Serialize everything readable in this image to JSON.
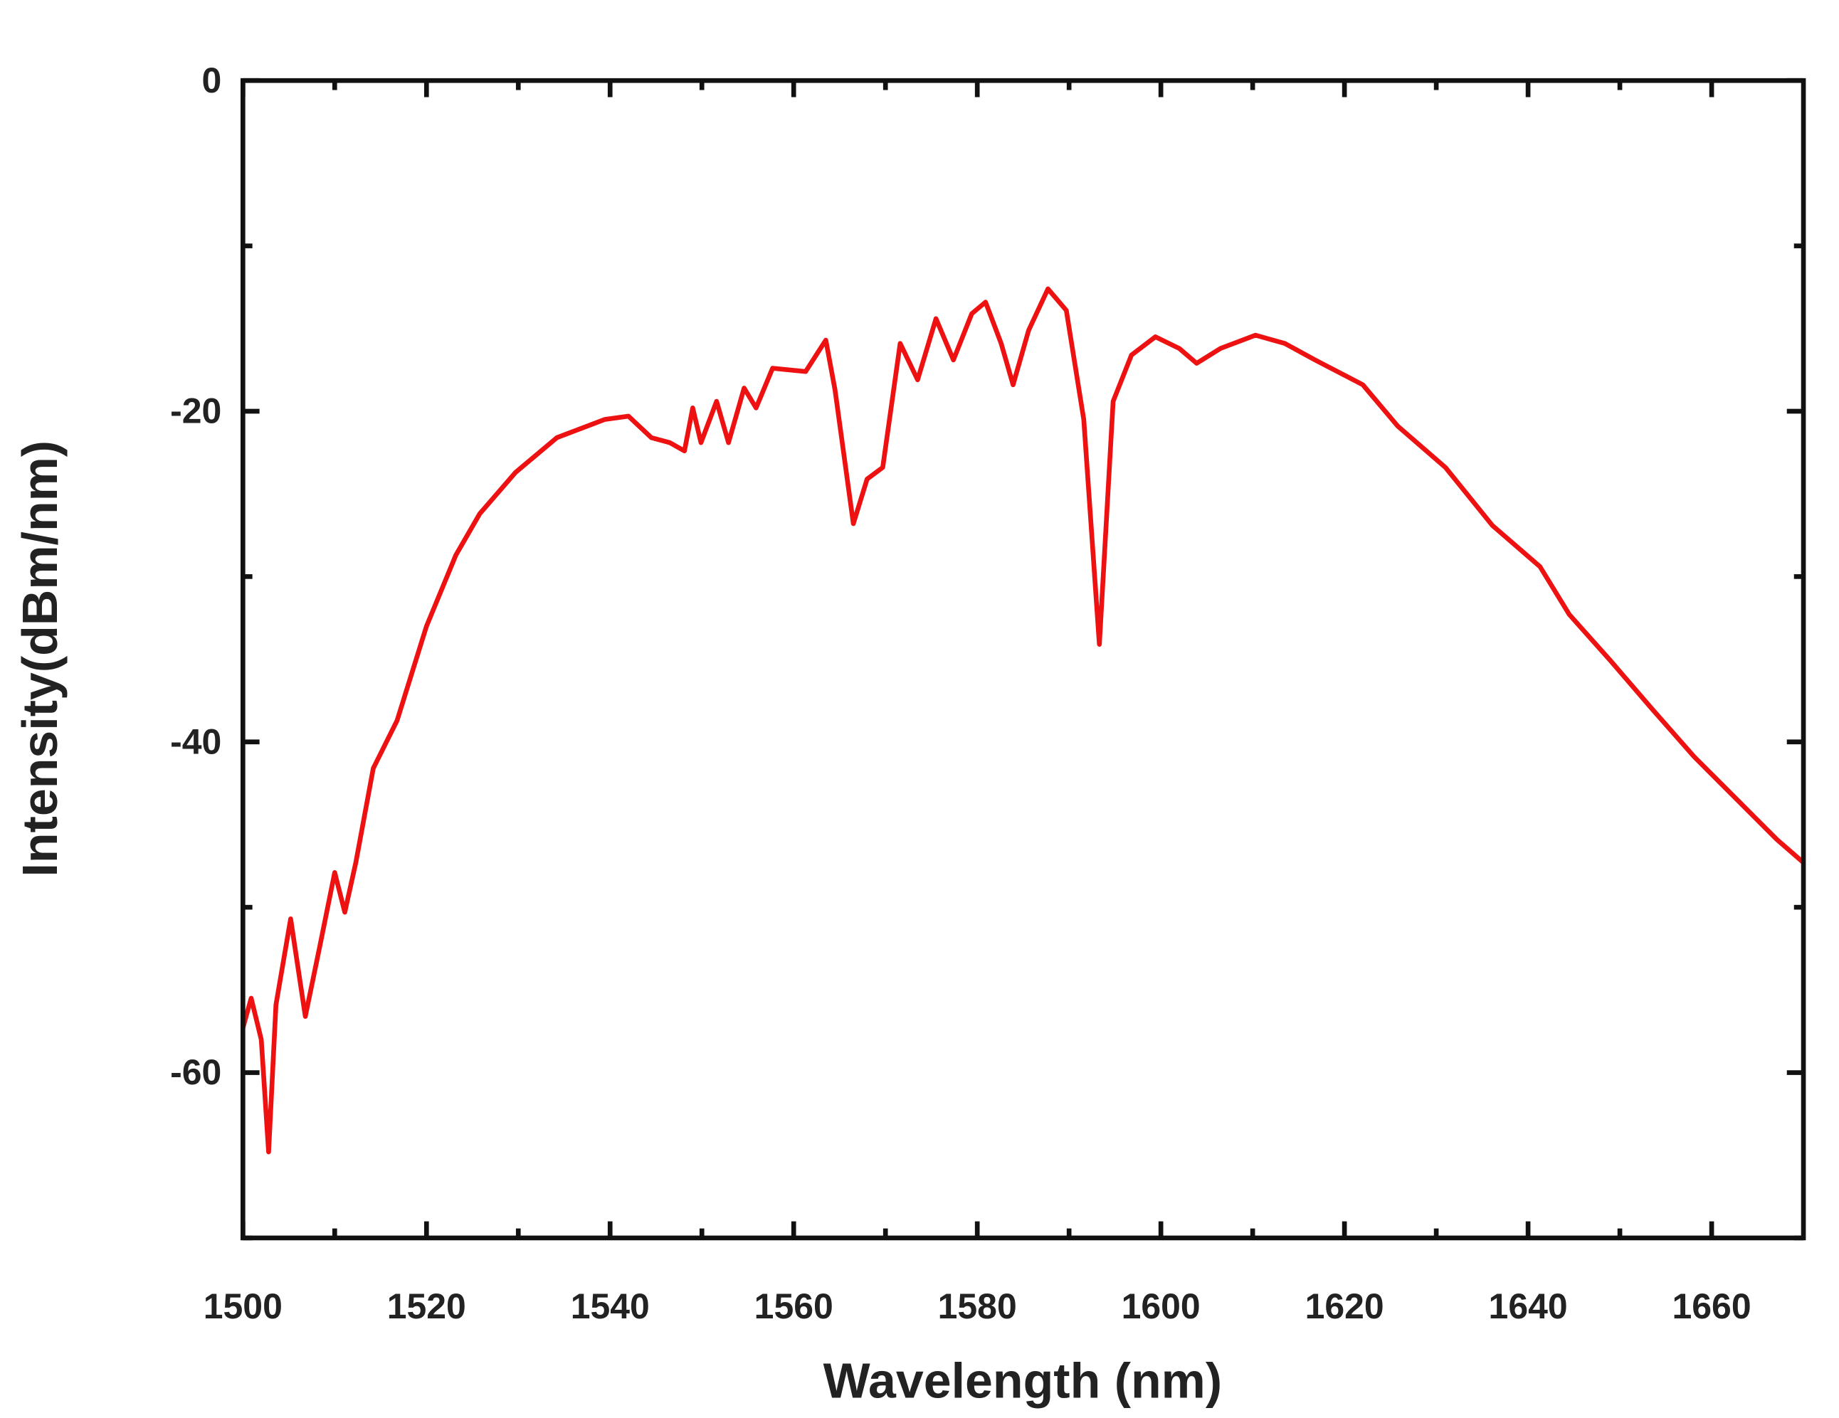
{
  "chart_data": {
    "type": "line",
    "xlabel": "Wavelength (nm)",
    "ylabel": "Intensity(dBm/nm)",
    "xlim": [
      1500,
      1670
    ],
    "ylim": [
      -70,
      0
    ],
    "xticks": [
      1500,
      1520,
      1540,
      1560,
      1580,
      1600,
      1620,
      1640,
      1660
    ],
    "xminorticks": [
      1510,
      1530,
      1550,
      1570,
      1590,
      1610,
      1630,
      1650
    ],
    "yticks": [
      0,
      -20,
      -40,
      -60
    ],
    "yminorticks": [
      -10,
      -30,
      -50,
      -70
    ],
    "series": [
      {
        "color": "#ee1111",
        "x": [
          1500,
          1500.9,
          1502,
          1502.8,
          1503.6,
          1505.2,
          1506.8,
          1508.4,
          1510,
          1511.1,
          1512.3,
          1514.2,
          1516.8,
          1520,
          1523.2,
          1525.8,
          1529.7,
          1534.2,
          1539.4,
          1542,
          1544.5,
          1546.5,
          1548.1,
          1549,
          1549.9,
          1551.6,
          1552.9,
          1554.6,
          1555.9,
          1557.7,
          1561.3,
          1563.5,
          1564.5,
          1566.5,
          1568,
          1569.7,
          1571.6,
          1573.5,
          1575.5,
          1577.4,
          1579.4,
          1580.9,
          1582.6,
          1583.9,
          1585.6,
          1587.7,
          1589.7,
          1591.6,
          1593.3,
          1594.8,
          1596.8,
          1599.4,
          1602,
          1603.9,
          1606.5,
          1610.3,
          1613.5,
          1616.8,
          1622,
          1625.8,
          1631,
          1636.1,
          1641.3,
          1644.5,
          1649,
          1653.5,
          1658.1,
          1662.6,
          1667.1,
          1670
        ],
        "values": [
          -57.3,
          -55.5,
          -58,
          -64.8,
          -55.9,
          -50.7,
          -56.6,
          -52.3,
          -47.9,
          -50.3,
          -47.3,
          -41.6,
          -38.7,
          -33,
          -28.7,
          -26.2,
          -23.7,
          -21.6,
          -20.5,
          -20.3,
          -21.6,
          -21.9,
          -22.4,
          -19.8,
          -21.9,
          -19.4,
          -21.9,
          -18.6,
          -19.8,
          -17.4,
          -17.6,
          -15.7,
          -18.7,
          -26.8,
          -24.1,
          -23.4,
          -15.9,
          -18.1,
          -14.4,
          -16.9,
          -14.1,
          -13.4,
          -15.9,
          -18.4,
          -15.1,
          -12.6,
          -13.9,
          -20.5,
          -34.1,
          -19.4,
          -16.6,
          -15.5,
          -16.2,
          -17.1,
          -16.2,
          -15.4,
          -15.9,
          -16.9,
          -18.4,
          -20.9,
          -23.4,
          -26.9,
          -29.4,
          -32.3,
          -35.1,
          -38,
          -40.9,
          -43.4,
          -45.9,
          -47.3
        ]
      }
    ]
  }
}
